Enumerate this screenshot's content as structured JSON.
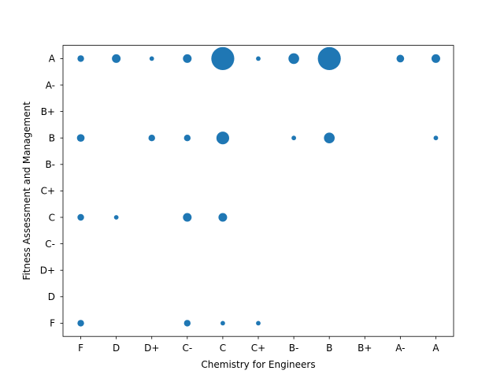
{
  "chart_data": {
    "type": "scatter",
    "title": "",
    "xlabel": "Chemistry for Engineers",
    "ylabel": "Fitness Assessment and Management",
    "x_categories": [
      "F",
      "D",
      "D+",
      "C-",
      "C",
      "C+",
      "B-",
      "B",
      "B+",
      "A-",
      "A"
    ],
    "y_categories": [
      "F",
      "D",
      "D+",
      "C-",
      "C",
      "C+",
      "B-",
      "B",
      "B+",
      "A-",
      "A"
    ],
    "marker_color": "#1f77b4",
    "size_note": "relative bubble size (count)",
    "points": [
      {
        "x": "F",
        "y": "A",
        "size": 2
      },
      {
        "x": "D",
        "y": "A",
        "size": 3
      },
      {
        "x": "D+",
        "y": "A",
        "size": 1
      },
      {
        "x": "C-",
        "y": "A",
        "size": 3
      },
      {
        "x": "C",
        "y": "A",
        "size": 10
      },
      {
        "x": "C+",
        "y": "A",
        "size": 1
      },
      {
        "x": "B-",
        "y": "A",
        "size": 4
      },
      {
        "x": "B",
        "y": "A",
        "size": 10
      },
      {
        "x": "A-",
        "y": "A",
        "size": 2.5
      },
      {
        "x": "A",
        "y": "A",
        "size": 3
      },
      {
        "x": "F",
        "y": "B",
        "size": 2.5
      },
      {
        "x": "D+",
        "y": "B",
        "size": 2
      },
      {
        "x": "C-",
        "y": "B",
        "size": 2
      },
      {
        "x": "C",
        "y": "B",
        "size": 5
      },
      {
        "x": "B-",
        "y": "B",
        "size": 1
      },
      {
        "x": "B",
        "y": "B",
        "size": 4
      },
      {
        "x": "A",
        "y": "B",
        "size": 1
      },
      {
        "x": "F",
        "y": "C",
        "size": 2
      },
      {
        "x": "D",
        "y": "C",
        "size": 1
      },
      {
        "x": "C-",
        "y": "C",
        "size": 3
      },
      {
        "x": "C",
        "y": "C",
        "size": 3
      },
      {
        "x": "F",
        "y": "F",
        "size": 2
      },
      {
        "x": "C-",
        "y": "F",
        "size": 2
      },
      {
        "x": "C",
        "y": "F",
        "size": 1
      },
      {
        "x": "C+",
        "y": "F",
        "size": 1
      }
    ]
  }
}
